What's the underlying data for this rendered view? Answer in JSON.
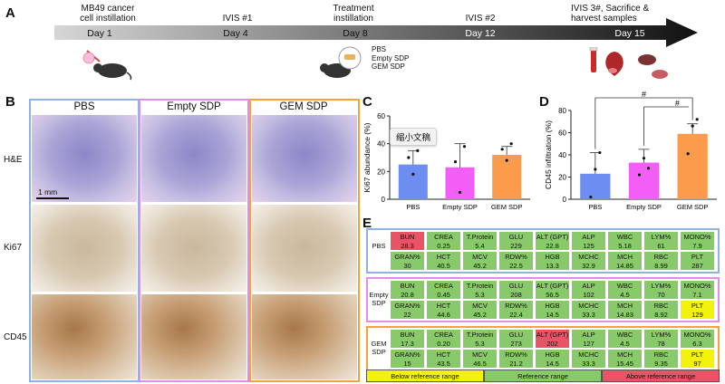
{
  "panels": {
    "A": "A",
    "B": "B",
    "C": "C",
    "D": "D",
    "E": "E"
  },
  "timeline": {
    "days": [
      "Day 1",
      "Day 4",
      "Day 8",
      "Day 12",
      "Day 15"
    ],
    "events": [
      "MB49 cancer\ncell instillation",
      "IVIS #1",
      "Treatment\ninstillation",
      "IVIS #2",
      "IVIS 3#, Sacrifice &\nharvest samples"
    ],
    "treatments": [
      "PBS",
      "Empty SDP",
      "GEM SDP"
    ]
  },
  "histology": {
    "columns": [
      "PBS",
      "Empty SDP",
      "GEM SDP"
    ],
    "rows": [
      "H&E",
      "Ki67",
      "CD45"
    ],
    "scale_bar": "1 mm",
    "column_colors": [
      "#8fb3e0",
      "#e08fe6",
      "#f4a23a"
    ]
  },
  "tooltip": "缩小文稿",
  "chart_data": [
    {
      "type": "bar",
      "panel": "C",
      "categories": [
        "PBS",
        "Empty SDP",
        "GEM SDP"
      ],
      "values": [
        25,
        23,
        32
      ],
      "errors": [
        10,
        17,
        6
      ],
      "points": [
        [
          30,
          18,
          35
        ],
        [
          27,
          5,
          38
        ],
        [
          36,
          28,
          40
        ]
      ],
      "colors": [
        "#6d8ef0",
        "#f35ef7",
        "#fb9b4b"
      ],
      "ylabel": "Ki67 abundance (%)",
      "ylim": [
        0,
        60
      ],
      "yticks": [
        0,
        20,
        40,
        60
      ]
    },
    {
      "type": "bar",
      "panel": "D",
      "categories": [
        "PBS",
        "Empty SDP",
        "GEM SDP"
      ],
      "values": [
        23,
        33,
        59
      ],
      "errors": [
        19,
        12,
        9
      ],
      "points": [
        [
          2,
          27,
          42
        ],
        [
          22,
          37,
          28
        ],
        [
          41,
          66,
          72
        ]
      ],
      "colors": [
        "#6d8ef0",
        "#f35ef7",
        "#fb9b4b"
      ],
      "ylabel": "CD45 infiltration (%)",
      "ylim": [
        0,
        80
      ],
      "yticks": [
        0,
        20,
        40,
        60,
        80
      ],
      "significance": [
        "#",
        "#"
      ]
    }
  ],
  "blood_table": {
    "groups": [
      {
        "label": "PBS",
        "border": "#8fb3e0",
        "rows": [
          [
            [
              "BUN",
              "28.3",
              "above"
            ],
            [
              "CREA",
              "0.25",
              "ref"
            ],
            [
              "T.Protein",
              "5.4",
              "ref"
            ],
            [
              "GLU",
              "229",
              "ref"
            ],
            [
              "ALT (GPT)",
              "22.8",
              "ref"
            ],
            [
              "ALP",
              "125",
              "ref"
            ],
            [
              "WBC",
              "5.18",
              "ref"
            ],
            [
              "LYM%",
              "61",
              "ref"
            ],
            [
              "MONO%",
              "7.9",
              "ref"
            ]
          ],
          [
            [
              "GRAN%",
              "30",
              "ref"
            ],
            [
              "HCT",
              "40.5",
              "ref"
            ],
            [
              "MCV",
              "45.2",
              "ref"
            ],
            [
              "RDW%",
              "22.5",
              "ref"
            ],
            [
              "HGB",
              "13.3",
              "ref"
            ],
            [
              "MCHC",
              "32.9",
              "ref"
            ],
            [
              "MCH",
              "14.85",
              "ref"
            ],
            [
              "RBC",
              "8.99",
              "ref"
            ],
            [
              "PLT",
              "287",
              "ref"
            ]
          ]
        ]
      },
      {
        "label": "Empty\nSDP",
        "border": "#e08fe6",
        "rows": [
          [
            [
              "BUN",
              "20.8",
              "ref"
            ],
            [
              "CREA",
              "0.45",
              "ref"
            ],
            [
              "T.Protein",
              "5.3",
              "ref"
            ],
            [
              "GLU",
              "208",
              "ref"
            ],
            [
              "ALT (GPT)",
              "56.5",
              "ref"
            ],
            [
              "ALP",
              "102",
              "ref"
            ],
            [
              "WBC",
              "4.5",
              "ref"
            ],
            [
              "LYM%",
              "70",
              "ref"
            ],
            [
              "MONO%",
              "7.1",
              "ref"
            ]
          ],
          [
            [
              "GRAN%",
              "22",
              "ref"
            ],
            [
              "HCT",
              "44.6",
              "ref"
            ],
            [
              "MCV",
              "45.2",
              "ref"
            ],
            [
              "RDW%",
              "22.4",
              "ref"
            ],
            [
              "HGB",
              "14.5",
              "ref"
            ],
            [
              "MCHC",
              "33.3",
              "ref"
            ],
            [
              "MCH",
              "14.83",
              "ref"
            ],
            [
              "RBC",
              "8.92",
              "ref"
            ],
            [
              "PLT",
              "129",
              "below"
            ]
          ]
        ]
      },
      {
        "label": "GEM\nSDP",
        "border": "#f4a23a",
        "rows": [
          [
            [
              "BUN",
              "17.3",
              "ref"
            ],
            [
              "CREA",
              "0.20",
              "ref"
            ],
            [
              "T.Protein",
              "5.3",
              "ref"
            ],
            [
              "GLU",
              "273",
              "ref"
            ],
            [
              "ALT (GPT)",
              "202",
              "above"
            ],
            [
              "ALP",
              "127",
              "ref"
            ],
            [
              "WBC",
              "4.5",
              "ref"
            ],
            [
              "LYM%",
              "78",
              "ref"
            ],
            [
              "MONO%",
              "6.3",
              "ref"
            ]
          ],
          [
            [
              "GRAN%",
              "15",
              "ref"
            ],
            [
              "HCT",
              "43.5",
              "ref"
            ],
            [
              "MCV",
              "46.5",
              "ref"
            ],
            [
              "RDW%",
              "21.2",
              "ref"
            ],
            [
              "HGB",
              "14.5",
              "ref"
            ],
            [
              "MCHC",
              "33.3",
              "ref"
            ],
            [
              "MCH",
              "15.45",
              "ref"
            ],
            [
              "RBC",
              "9.35",
              "ref"
            ],
            [
              "PLT",
              "97",
              "below"
            ]
          ]
        ]
      }
    ],
    "legend": [
      "Below reference range",
      "Reference range",
      "Above reference range"
    ]
  }
}
